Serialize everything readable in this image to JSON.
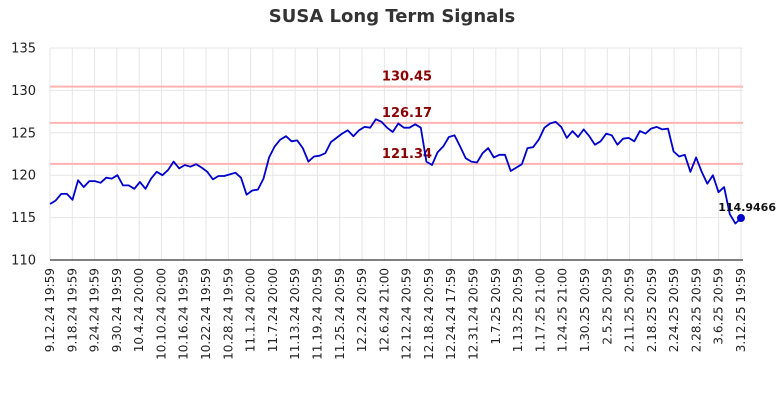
{
  "chart_data": {
    "type": "line",
    "title": "SUSA Long Term Signals",
    "xlabel": "",
    "ylabel": "",
    "ylim": [
      110,
      135
    ],
    "yticks": [
      110,
      115,
      120,
      125,
      130,
      135
    ],
    "xtick_labels": [
      "9.12.24 19:59",
      "9.18.24 19:59",
      "9.24.24 19:59",
      "9.30.24 19:59",
      "10.4.24 20:00",
      "10.10.24 20:00",
      "10.16.24 19:59",
      "10.22.24 19:59",
      "10.28.24 19:59",
      "11.1.24 20:00",
      "11.7.24 20:00",
      "11.13.24 20:59",
      "11.19.24 20:59",
      "11.25.24 20:59",
      "12.2.24 20:59",
      "12.6.24 21:00",
      "12.12.24 20:59",
      "12.18.24 20:59",
      "12.24.24 17:59",
      "12.31.24 20:59",
      "1.7.25 20:59",
      "1.13.25 20:59",
      "1.17.25 21:00",
      "1.24.25 21:00",
      "1.30.25 20:59",
      "2.5.25 20:59",
      "2.11.25 20:59",
      "2.18.25 20:59",
      "2.24.25 20:59",
      "2.28.25 20:59",
      "3.6.25 20:59",
      "3.12.25 19:59"
    ],
    "grid": true,
    "reference_lines": [
      {
        "value": 130.45,
        "label": "130.45",
        "color": "#ffb3b3"
      },
      {
        "value": 126.17,
        "label": "126.17",
        "color": "#ffb3b3"
      },
      {
        "value": 121.34,
        "label": "121.34",
        "color": "#ffb3b3"
      }
    ],
    "series": [
      {
        "color": "#0000cc",
        "values": [
          116.6,
          117.0,
          117.8,
          117.8,
          117.1,
          119.4,
          118.6,
          119.3,
          119.3,
          119.1,
          119.7,
          119.6,
          120.0,
          118.8,
          118.8,
          118.4,
          119.2,
          118.4,
          119.6,
          120.4,
          120.0,
          120.6,
          121.6,
          120.8,
          121.2,
          121.0,
          121.3,
          120.9,
          120.4,
          119.5,
          119.9,
          119.9,
          120.1,
          120.3,
          119.7,
          117.7,
          118.2,
          118.3,
          119.6,
          122.1,
          123.4,
          124.2,
          124.6,
          124.0,
          124.1,
          123.2,
          121.6,
          122.2,
          122.3,
          122.6,
          123.9,
          124.4,
          124.9,
          125.3,
          124.6,
          125.3,
          125.7,
          125.6,
          126.6,
          126.3,
          125.6,
          125.1,
          126.1,
          125.6,
          125.6,
          126.0,
          125.6,
          121.6,
          121.2,
          122.7,
          123.4,
          124.5,
          124.7,
          123.4,
          122.0,
          121.6,
          121.5,
          122.6,
          123.2,
          122.1,
          122.4,
          122.4,
          120.5,
          120.9,
          121.3,
          123.2,
          123.3,
          124.2,
          125.6,
          126.1,
          126.3,
          125.7,
          124.4,
          125.2,
          124.5,
          125.4,
          124.6,
          123.6,
          124.0,
          124.9,
          124.7,
          123.6,
          124.3,
          124.4,
          124.0,
          125.2,
          124.9,
          125.5,
          125.7,
          125.4,
          125.5,
          122.8,
          122.2,
          122.4,
          120.4,
          122.1,
          120.4,
          119.0,
          120.0,
          118.0,
          118.6,
          115.4,
          114.3,
          114.9466
        ]
      }
    ],
    "last_value_label": "114.9466",
    "legend": "none"
  }
}
